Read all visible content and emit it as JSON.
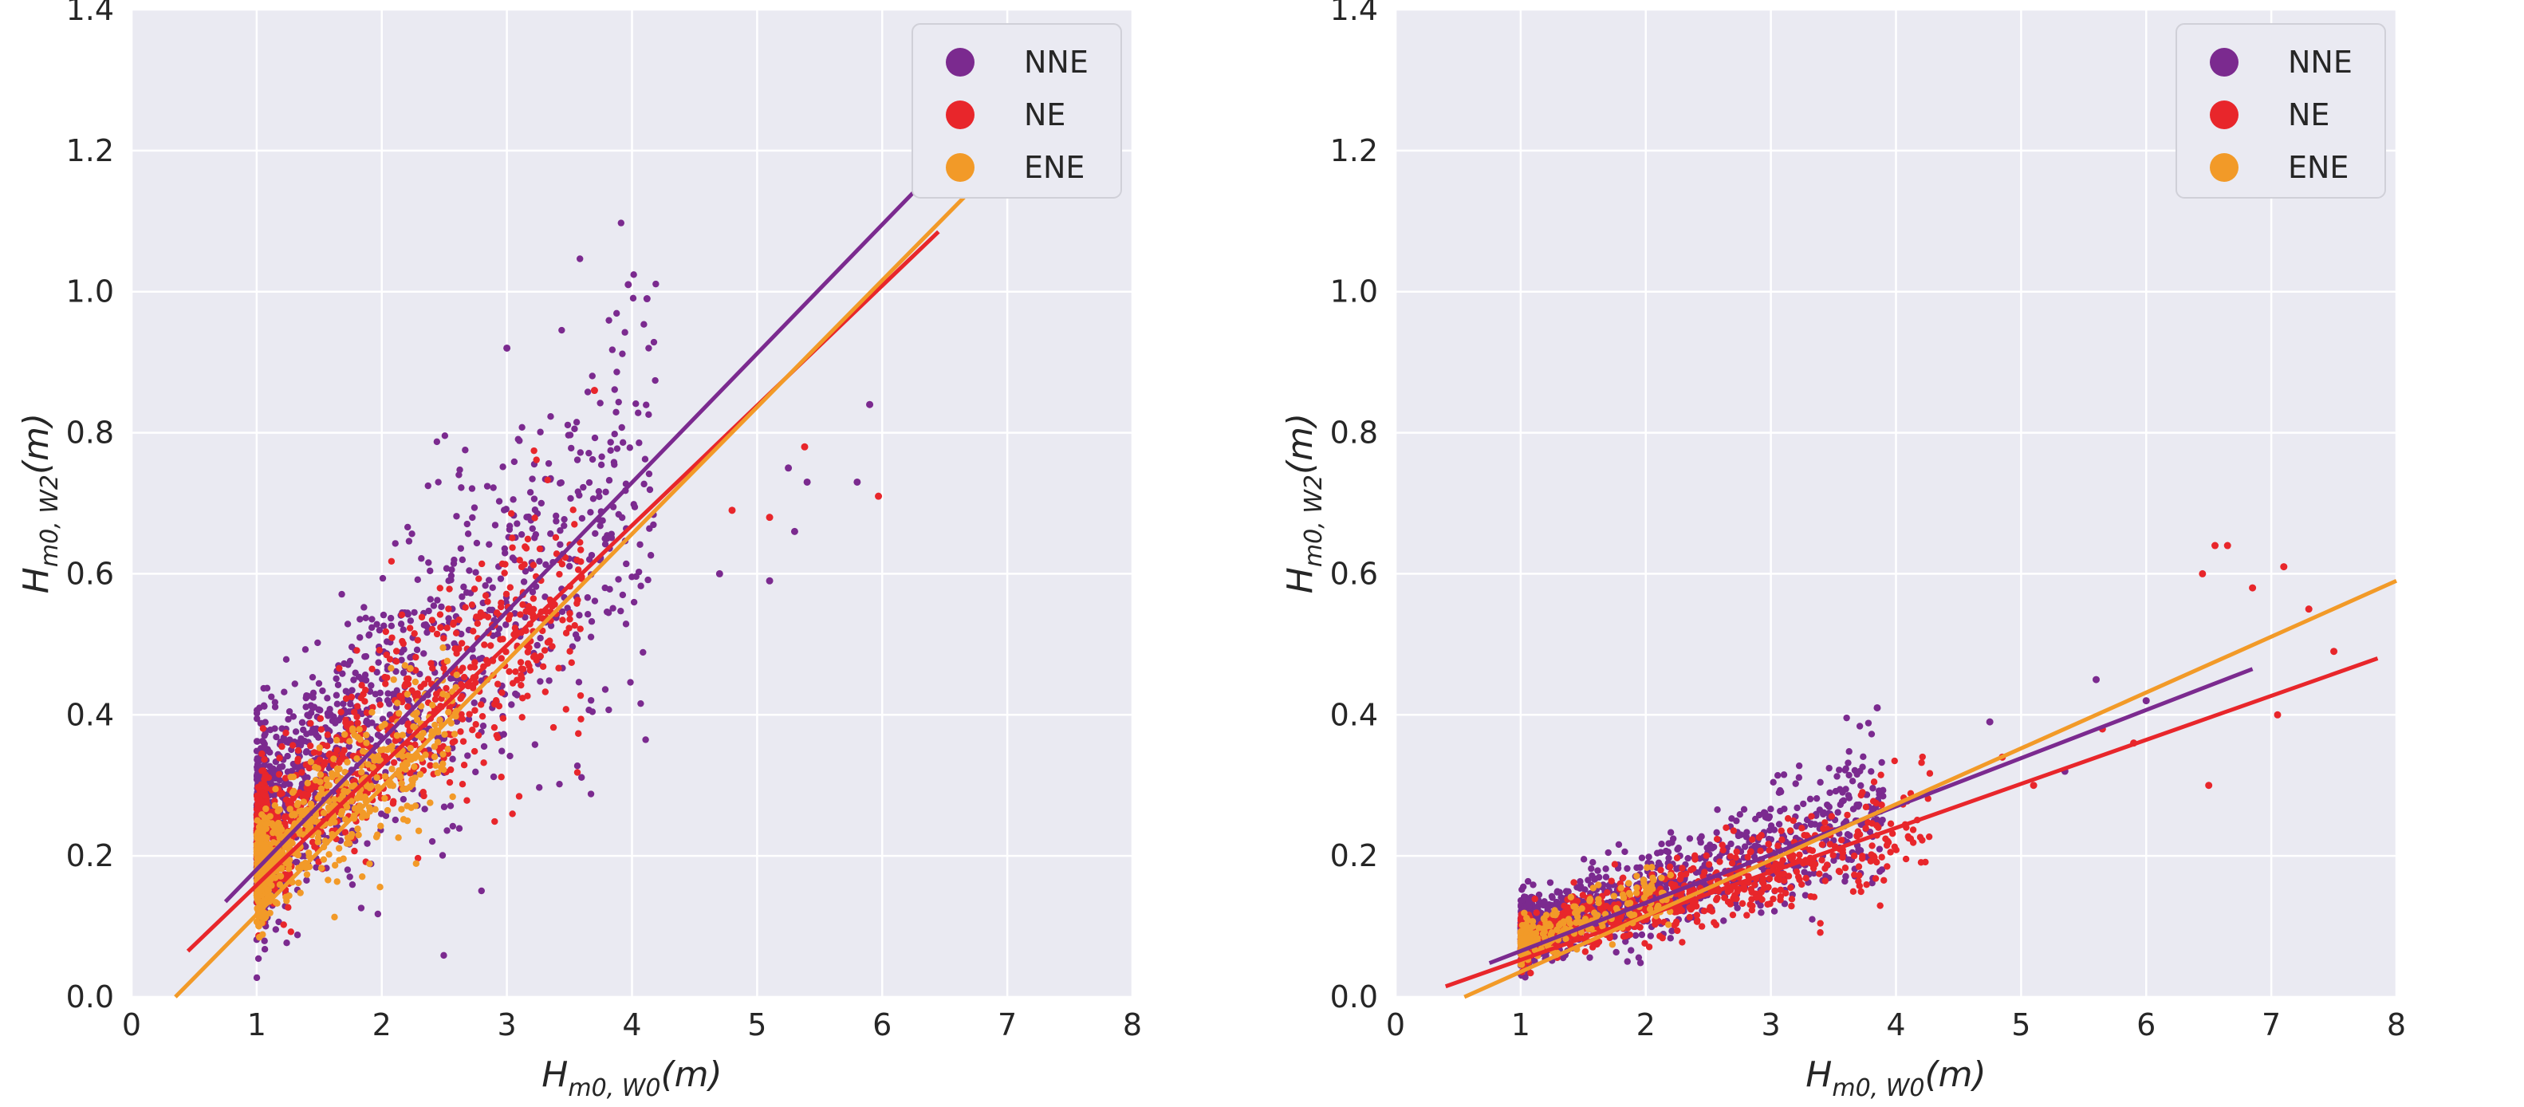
{
  "chart_data": [
    {
      "type": "scatter",
      "xlabel": "H_{m0,W0}(m)",
      "ylabel": "H_{m0,W2}(m)",
      "xlim": [
        0,
        8
      ],
      "ylim": [
        0,
        1.4
      ],
      "xticks": [
        "0",
        "1",
        "2",
        "3",
        "4",
        "5",
        "6",
        "7",
        "8"
      ],
      "yticks": [
        "0.0",
        "0.2",
        "0.4",
        "0.6",
        "0.8",
        "1.0",
        "1.2",
        "1.4"
      ],
      "grid": true,
      "legend_position": "top-right",
      "series": [
        {
          "name": "NNE",
          "color": "#7b2a8f",
          "fit_line": {
            "x": [
              0.75,
              6.3
            ],
            "y": [
              0.135,
              1.15
            ]
          },
          "cloud": {
            "x_range": [
              1.0,
              4.2
            ],
            "center_slope": 0.163,
            "center_intercept": 0.08,
            "spread": 0.12,
            "count": 1400
          }
        },
        {
          "name": "NE",
          "color": "#e8262b",
          "fit_line": {
            "x": [
              0.45,
              6.45
            ],
            "y": [
              0.065,
              1.085
            ]
          },
          "cloud": {
            "x_range": [
              1.0,
              3.6
            ],
            "center_slope": 0.15,
            "center_intercept": 0.06,
            "spread": 0.08,
            "count": 1100
          }
        },
        {
          "name": "ENE",
          "color": "#f29a28",
          "fit_line": {
            "x": [
              0.35,
              6.8
            ],
            "y": [
              0.0,
              1.16
            ]
          },
          "cloud": {
            "x_range": [
              1.0,
              2.6
            ],
            "center_slope": 0.14,
            "center_intercept": 0.035,
            "spread": 0.06,
            "count": 700
          }
        }
      ],
      "outliers": [
        {
          "series": "NNE",
          "x": 3.97,
          "y": 1.01
        },
        {
          "series": "NNE",
          "x": 4.12,
          "y": 0.99
        },
        {
          "series": "NNE",
          "x": 3.0,
          "y": 0.92
        },
        {
          "series": "NNE",
          "x": 5.9,
          "y": 0.84
        },
        {
          "series": "NNE",
          "x": 5.25,
          "y": 0.75
        },
        {
          "series": "NNE",
          "x": 5.4,
          "y": 0.73
        },
        {
          "series": "NNE",
          "x": 5.8,
          "y": 0.73
        },
        {
          "series": "NNE",
          "x": 5.3,
          "y": 0.66
        },
        {
          "series": "NNE",
          "x": 4.7,
          "y": 0.6
        },
        {
          "series": "NNE",
          "x": 5.1,
          "y": 0.59
        },
        {
          "series": "NE",
          "x": 5.97,
          "y": 0.71
        },
        {
          "series": "NE",
          "x": 5.38,
          "y": 0.78
        },
        {
          "series": "NE",
          "x": 5.1,
          "y": 0.68
        },
        {
          "series": "NE",
          "x": 4.8,
          "y": 0.69
        },
        {
          "series": "NE",
          "x": 3.7,
          "y": 0.86
        }
      ]
    },
    {
      "type": "scatter",
      "xlabel": "H_{m0,W0}(m)",
      "ylabel": "H_{m0,W2}(m)",
      "xlim": [
        0,
        8
      ],
      "ylim": [
        0,
        1.4
      ],
      "xticks": [
        "0",
        "1",
        "2",
        "3",
        "4",
        "5",
        "6",
        "7",
        "8"
      ],
      "yticks": [
        "0.0",
        "0.2",
        "0.4",
        "0.6",
        "0.8",
        "1.0",
        "1.2",
        "1.4"
      ],
      "grid": true,
      "legend_position": "top-right",
      "series": [
        {
          "name": "NNE",
          "color": "#7b2a8f",
          "fit_line": {
            "x": [
              0.75,
              6.85
            ],
            "y": [
              0.048,
              0.465
            ]
          },
          "cloud": {
            "x_range": [
              1.0,
              3.9
            ],
            "center_slope": 0.06,
            "center_intercept": 0.03,
            "spread": 0.04,
            "count": 1300
          }
        },
        {
          "name": "NE",
          "color": "#e8262b",
          "fit_line": {
            "x": [
              0.4,
              7.85
            ],
            "y": [
              0.015,
              0.48
            ]
          },
          "cloud": {
            "x_range": [
              1.0,
              4.3
            ],
            "center_slope": 0.05,
            "center_intercept": 0.03,
            "spread": 0.03,
            "count": 900
          }
        },
        {
          "name": "ENE",
          "color": "#f29a28",
          "fit_line": {
            "x": [
              0.55,
              8.0
            ],
            "y": [
              0.0,
              0.59
            ]
          },
          "cloud": {
            "x_range": [
              1.0,
              2.2
            ],
            "center_slope": 0.06,
            "center_intercept": 0.02,
            "spread": 0.025,
            "count": 250
          }
        }
      ],
      "outliers": [
        {
          "series": "NE",
          "x": 6.55,
          "y": 0.64
        },
        {
          "series": "NE",
          "x": 6.65,
          "y": 0.64
        },
        {
          "series": "NE",
          "x": 7.1,
          "y": 0.61
        },
        {
          "series": "NE",
          "x": 6.85,
          "y": 0.58
        },
        {
          "series": "NE",
          "x": 7.3,
          "y": 0.55
        },
        {
          "series": "NE",
          "x": 6.45,
          "y": 0.6
        },
        {
          "series": "NE",
          "x": 7.5,
          "y": 0.49
        },
        {
          "series": "NE",
          "x": 7.05,
          "y": 0.4
        },
        {
          "series": "NE",
          "x": 6.5,
          "y": 0.3
        },
        {
          "series": "NE",
          "x": 5.65,
          "y": 0.38
        },
        {
          "series": "NE",
          "x": 5.9,
          "y": 0.36
        },
        {
          "series": "NE",
          "x": 4.85,
          "y": 0.34
        },
        {
          "series": "NE",
          "x": 5.1,
          "y": 0.3
        },
        {
          "series": "NNE",
          "x": 4.75,
          "y": 0.39
        },
        {
          "series": "NNE",
          "x": 5.6,
          "y": 0.45
        },
        {
          "series": "NNE",
          "x": 3.85,
          "y": 0.41
        },
        {
          "series": "NNE",
          "x": 6.0,
          "y": 0.42
        },
        {
          "series": "NNE",
          "x": 5.35,
          "y": 0.32
        }
      ]
    }
  ]
}
